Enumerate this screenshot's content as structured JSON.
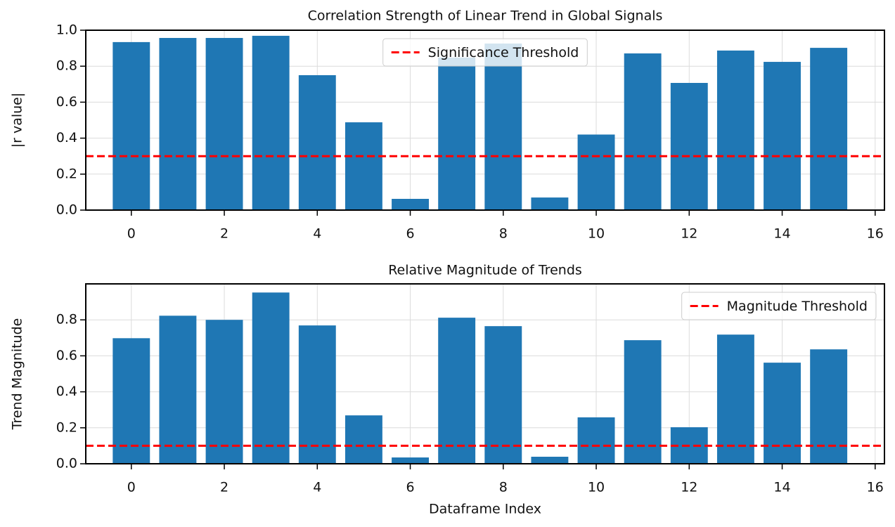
{
  "chart_data": [
    {
      "type": "bar",
      "title": "Correlation Strength of Linear Trend in Global Signals",
      "ylabel": "|r value|",
      "x": [
        0,
        1,
        2,
        3,
        4,
        5,
        6,
        7,
        8,
        9,
        10,
        11,
        12,
        13,
        14,
        15
      ],
      "values": [
        0.934,
        0.957,
        0.957,
        0.969,
        0.75,
        0.488,
        0.0625,
        0.848,
        0.926,
        0.07,
        0.42,
        0.871,
        0.707,
        0.887,
        0.824,
        0.902
      ],
      "color": "#1f77b4",
      "hline": {
        "name": "Significance Threshold",
        "value": 0.3,
        "color": "#ff0000"
      },
      "legend": "upper center",
      "xlim": [
        -0.98,
        16.2
      ],
      "ylim": [
        0,
        1.0
      ],
      "xticks": [
        0,
        2,
        4,
        6,
        8,
        10,
        12,
        14,
        16
      ],
      "yticks": [
        {
          "value": 0,
          "label": "0.0"
        },
        {
          "value": 0.2,
          "label": "0.2"
        },
        {
          "value": 0.4,
          "label": "0.4"
        },
        {
          "value": 0.6,
          "label": "0.6"
        },
        {
          "value": 0.8,
          "label": "0.8"
        },
        {
          "value": 1.0,
          "label": "1.0"
        }
      ],
      "grid": true
    },
    {
      "type": "bar",
      "title": "Relative Magnitude of Trends",
      "ylabel": "Trend Magnitude",
      "xlabel": "Dataframe Index",
      "x": [
        0,
        1,
        2,
        3,
        4,
        5,
        6,
        7,
        8,
        9,
        10,
        11,
        12,
        13,
        14,
        15
      ],
      "values": [
        0.698,
        0.823,
        0.8,
        0.952,
        0.769,
        0.269,
        0.035,
        0.812,
        0.765,
        0.039,
        0.258,
        0.687,
        0.203,
        0.718,
        0.562,
        0.636
      ],
      "color": "#1f77b4",
      "hline": {
        "name": "Magnitude Threshold",
        "value": 0.1,
        "color": "#ff0000"
      },
      "legend": "upper right",
      "xlim": [
        -0.98,
        16.2
      ],
      "ylim": [
        0,
        1.0
      ],
      "xticks": [
        0,
        2,
        4,
        6,
        8,
        10,
        12,
        14,
        16
      ],
      "yticks": [
        {
          "value": 0,
          "label": "0.0"
        },
        {
          "value": 0.2,
          "label": "0.2"
        },
        {
          "value": 0.4,
          "label": "0.4"
        },
        {
          "value": 0.6,
          "label": "0.6"
        },
        {
          "value": 0.8,
          "label": "0.8"
        }
      ],
      "grid": true
    }
  ]
}
